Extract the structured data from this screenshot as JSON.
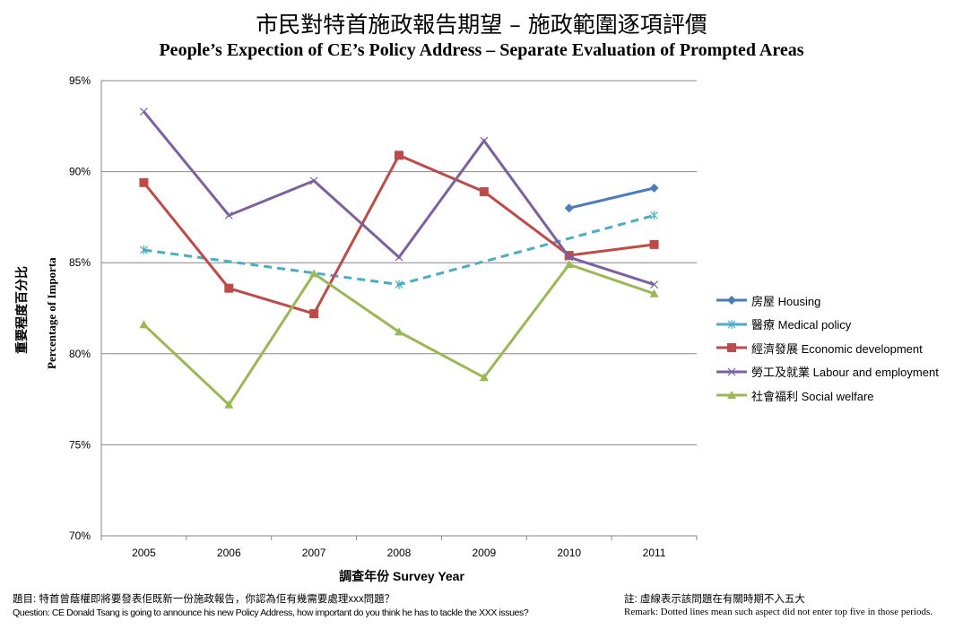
{
  "chart_data": {
    "type": "line",
    "title": "市民對特首施政報告期望 – 施政範圍逐項評價",
    "subtitle": "People’s Expection of CE’s Policy Address – Separate Evaluation  of Prompted Areas",
    "xlabel": "調查年份 Survey Year",
    "ylabel_zh": "重要程度百分比",
    "ylabel_en": "Percentage of Importa",
    "categories": [
      "2005",
      "2006",
      "2007",
      "2008",
      "2009",
      "2010",
      "2011"
    ],
    "ylim": [
      70,
      95
    ],
    "yticks": [
      70,
      75,
      80,
      85,
      90,
      95
    ],
    "ytick_labels": [
      "70%",
      "75%",
      "80%",
      "85%",
      "90%",
      "95%"
    ],
    "grid": true,
    "legend_position": "right",
    "series": [
      {
        "name": "房屋 Housing",
        "color": "#4A7EBB",
        "marker": "diamond",
        "dashed": false,
        "values": [
          null,
          null,
          null,
          null,
          null,
          88.0,
          89.1
        ]
      },
      {
        "name": "醫療 Medical policy",
        "color": "#4BACC6",
        "marker": "star",
        "dashed": true,
        "values": [
          85.7,
          null,
          null,
          83.8,
          null,
          null,
          87.6
        ]
      },
      {
        "name": "經濟發展 Economic development",
        "color": "#BE4B48",
        "marker": "square",
        "dashed": false,
        "values": [
          89.4,
          83.6,
          82.2,
          90.9,
          88.9,
          85.4,
          86.0
        ]
      },
      {
        "name": "勞工及就業 Labour and employment",
        "color": "#7D60A0",
        "marker": "x",
        "dashed": false,
        "values": [
          93.3,
          87.6,
          89.5,
          85.3,
          91.7,
          85.3,
          83.8
        ]
      },
      {
        "name": "社會福利 Social welfare",
        "color": "#98B954",
        "marker": "triangle",
        "dashed": false,
        "values": [
          81.6,
          77.2,
          84.4,
          81.2,
          78.7,
          84.9,
          83.3
        ]
      }
    ]
  },
  "footer": {
    "question_zh": "題目: 特首曾蔭權即將要發表佢既新一份施政報告，你認為佢有幾需要處理xxx問題？",
    "question_en": "Question: CE Donald Tsang is going to announce his new Policy Address, how important do you think he has to tackle the XXX issues?",
    "remark_zh": "註: 虛線表示該問題在有關時期不入五大",
    "remark_en": "Remark:  Dotted lines mean such aspect did not enter top five in those periods."
  }
}
